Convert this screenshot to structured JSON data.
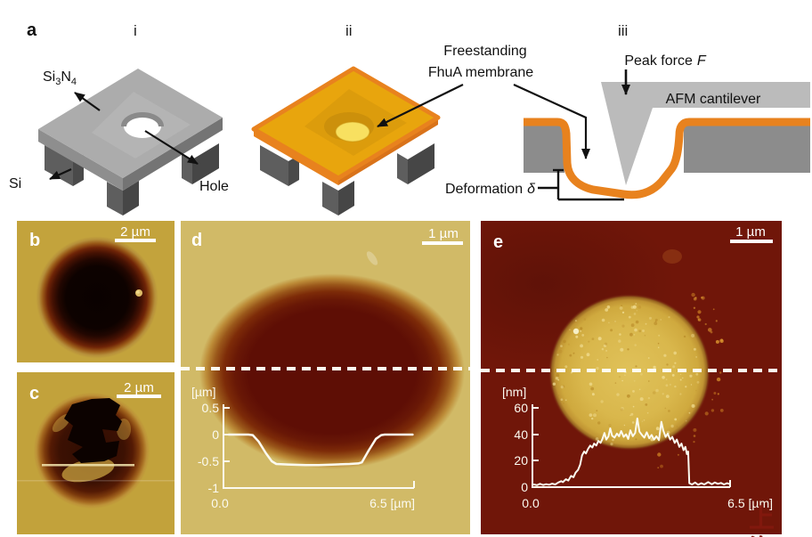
{
  "figure": {
    "panels": {
      "a": {
        "label": "a",
        "i": {
          "label": "i",
          "si3n4_parts": [
            "Si",
            "3",
            "N",
            "4"
          ],
          "si_label": "Si",
          "hole_label": "Hole"
        },
        "ii": {
          "label": "ii",
          "membrane_line1": "Freestanding",
          "membrane_line2": "FhuA membrane"
        },
        "iii": {
          "label": "iii",
          "peak_force_label": "Peak force",
          "peak_force_symbol": "F",
          "cantilever_label": "AFM cantilever",
          "deformation_label": "Deformation",
          "deformation_symbol": "δ"
        }
      },
      "b": {
        "label": "b",
        "scale_bar": "2 µm"
      },
      "c": {
        "label": "c",
        "scale_bar": "2 µm"
      },
      "d": {
        "label": "d",
        "scale_bar": "1 µm"
      },
      "e": {
        "label": "e",
        "scale_bar": "1 µm"
      }
    },
    "watermark": "上海"
  },
  "chart_data": [
    {
      "type": "line",
      "name": "panel-d height profile along dashed section line",
      "y_unit_label": "[µm]",
      "ytick_labels": [
        "0.5",
        "0",
        "-0.5",
        "-1"
      ],
      "ytick_values": [
        0.5,
        0,
        -0.5,
        -1
      ],
      "x_start_label": "0.0",
      "x_end_label": "6.5 [µm]",
      "xlim": [
        0,
        6.5
      ],
      "ylim": [
        -1,
        0.5
      ],
      "legend": "none",
      "points": [
        [
          0.18,
          0
        ],
        [
          0.85,
          0
        ],
        [
          1.0,
          -0.01
        ],
        [
          1.2,
          -0.13
        ],
        [
          1.45,
          -0.35
        ],
        [
          1.65,
          -0.5
        ],
        [
          1.8,
          -0.55
        ],
        [
          2.2,
          -0.56
        ],
        [
          2.8,
          -0.57
        ],
        [
          3.25,
          -0.57
        ],
        [
          3.8,
          -0.56
        ],
        [
          4.3,
          -0.55
        ],
        [
          4.6,
          -0.54
        ],
        [
          4.72,
          -0.52
        ],
        [
          4.95,
          -0.3
        ],
        [
          5.2,
          -0.08
        ],
        [
          5.38,
          -0.01
        ],
        [
          5.5,
          0
        ],
        [
          6.1,
          0
        ],
        [
          6.45,
          0
        ]
      ]
    },
    {
      "type": "line",
      "name": "panel-e height profile along dashed section line",
      "y_unit_label": "[nm]",
      "ytick_labels": [
        "60",
        "40",
        "20",
        "0"
      ],
      "ytick_values": [
        60,
        40,
        20,
        0
      ],
      "x_start_label": "0.0",
      "x_end_label": "6.5 [µm]",
      "xlim": [
        0,
        6.5
      ],
      "ylim": [
        0,
        60
      ],
      "legend": "none",
      "points": [
        [
          0.05,
          2
        ],
        [
          0.15,
          1.5
        ],
        [
          0.25,
          2.5
        ],
        [
          0.35,
          1.6
        ],
        [
          0.45,
          2.2
        ],
        [
          0.55,
          1.8
        ],
        [
          0.65,
          2.6
        ],
        [
          0.75,
          2
        ],
        [
          0.85,
          3.5
        ],
        [
          0.95,
          4.5
        ],
        [
          1.0,
          3.8
        ],
        [
          1.1,
          6
        ],
        [
          1.18,
          5
        ],
        [
          1.27,
          8.5
        ],
        [
          1.35,
          7.5
        ],
        [
          1.42,
          11
        ],
        [
          1.5,
          13
        ],
        [
          1.57,
          17
        ],
        [
          1.63,
          24
        ],
        [
          1.7,
          27
        ],
        [
          1.76,
          25.5
        ],
        [
          1.83,
          29
        ],
        [
          1.9,
          31.5
        ],
        [
          1.97,
          30
        ],
        [
          2.03,
          33
        ],
        [
          2.1,
          31.5
        ],
        [
          2.17,
          35
        ],
        [
          2.24,
          33.5
        ],
        [
          2.3,
          36.5
        ],
        [
          2.37,
          41
        ],
        [
          2.43,
          36
        ],
        [
          2.5,
          38.5
        ],
        [
          2.56,
          44.5
        ],
        [
          2.62,
          39
        ],
        [
          2.7,
          37.5
        ],
        [
          2.78,
          40.5
        ],
        [
          2.85,
          38.5
        ],
        [
          2.92,
          42.5
        ],
        [
          3.0,
          38
        ],
        [
          3.08,
          40
        ],
        [
          3.15,
          36.5
        ],
        [
          3.22,
          43
        ],
        [
          3.3,
          38.5
        ],
        [
          3.38,
          41
        ],
        [
          3.45,
          52
        ],
        [
          3.52,
          42
        ],
        [
          3.6,
          39.5
        ],
        [
          3.68,
          37.5
        ],
        [
          3.76,
          41.5
        ],
        [
          3.84,
          37
        ],
        [
          3.92,
          39.5
        ],
        [
          4.0,
          36
        ],
        [
          4.08,
          38.5
        ],
        [
          4.16,
          35.5
        ],
        [
          4.24,
          49.5
        ],
        [
          4.3,
          43
        ],
        [
          4.38,
          38
        ],
        [
          4.45,
          40.5
        ],
        [
          4.53,
          36
        ],
        [
          4.6,
          38
        ],
        [
          4.68,
          33.5
        ],
        [
          4.75,
          36
        ],
        [
          4.83,
          30.5
        ],
        [
          4.9,
          33
        ],
        [
          4.97,
          28
        ],
        [
          5.03,
          30.5
        ],
        [
          5.08,
          25
        ],
        [
          5.12,
          27
        ],
        [
          5.16,
          3
        ],
        [
          5.25,
          2
        ],
        [
          5.35,
          3.5
        ],
        [
          5.45,
          1.8
        ],
        [
          5.55,
          3
        ],
        [
          5.65,
          2
        ],
        [
          5.78,
          3.8
        ],
        [
          5.9,
          2.2
        ],
        [
          6.0,
          3.5
        ],
        [
          6.1,
          2.5
        ],
        [
          6.2,
          3.2
        ],
        [
          6.3,
          2
        ],
        [
          6.4,
          3
        ],
        [
          6.48,
          2.4
        ]
      ]
    }
  ],
  "colors": {
    "afm_gold_background": "#C3A33C",
    "afm_khaki_background": "#D1BA67",
    "afm_maroon_background": "#701609",
    "membrane_orange": "#E8821E",
    "membrane_gold_top": "#E8A50D",
    "silicon_gray": "#5E5E5E",
    "nitride_gray": "#ACACAC",
    "cantilever_gray": "#BBBBBB",
    "profile_line_white": "#FBFAF0"
  }
}
